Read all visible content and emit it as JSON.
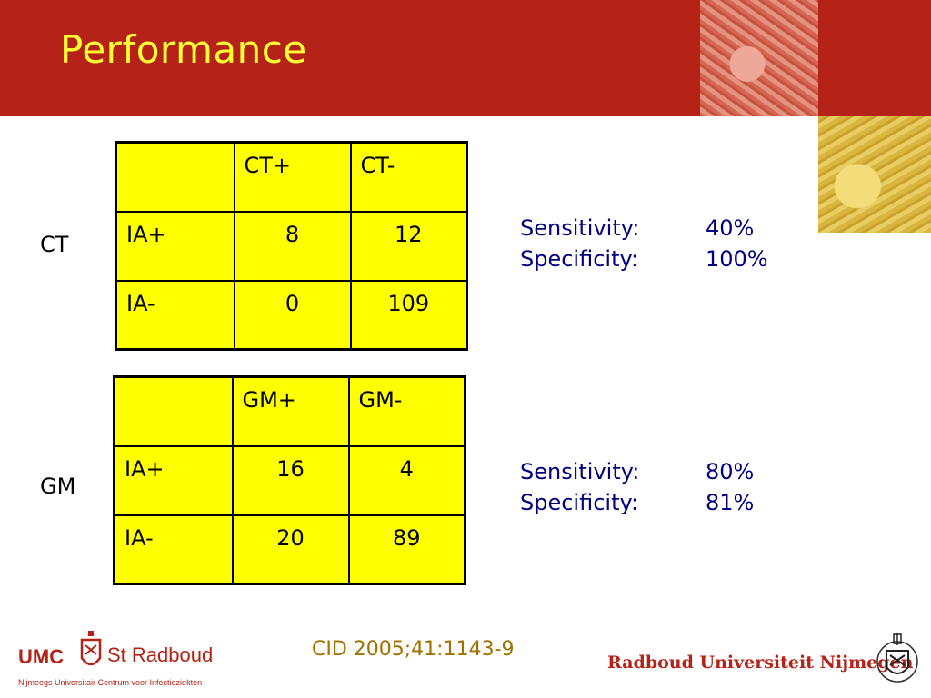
{
  "slide": {
    "title": "Performance",
    "citation": "CID 2005;41:1143-9"
  },
  "ct_section": {
    "row_label": "CT",
    "table": {
      "header": [
        "",
        "CT+",
        "CT-"
      ],
      "rows": [
        {
          "label": "IA+",
          "values": [
            "8",
            "12"
          ]
        },
        {
          "label": "IA-",
          "values": [
            "0",
            "109"
          ]
        }
      ]
    },
    "stats": {
      "sensitivity_label": "Sensitivity:",
      "sensitivity_value": "40%",
      "specificity_label": "Specificity:",
      "specificity_value": "100%"
    }
  },
  "gm_section": {
    "row_label": "GM",
    "table": {
      "header": [
        "",
        "GM+",
        "GM-"
      ],
      "rows": [
        {
          "label": "IA+",
          "values": [
            "16",
            "4"
          ]
        },
        {
          "label": "IA-",
          "values": [
            "20",
            "89"
          ]
        }
      ]
    },
    "stats": {
      "sensitivity_label": "Sensitivity:",
      "sensitivity_value": "80%",
      "specificity_label": "Specificity:",
      "specificity_value": "81%"
    }
  },
  "footer": {
    "umc_logo_text": "UMC",
    "radboud_logo_text": "St Radboud",
    "umc_subtitle": "Nijmeegs Universitair Centrum voor Infectieziekten",
    "university_name": "Radboud Universiteit Nijmegen"
  },
  "colors": {
    "header_red": "#b52318",
    "title_yellow": "#ffff33",
    "table_yellow": "#ffff00",
    "stats_navy": "#000080",
    "citation_gold": "#a07000"
  }
}
